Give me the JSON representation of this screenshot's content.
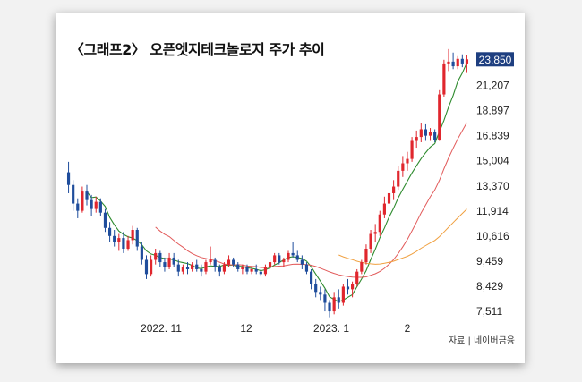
{
  "chart_data": {
    "type": "candlestick",
    "title": "〈그래프2〉 오픈엣지테크놀로지 주가 추이",
    "source": "자료 | 네이버금융",
    "x_ticks": [
      "2022. 11",
      "12",
      "2023. 1",
      "2"
    ],
    "y_ticks": [
      "23,850",
      "21,207",
      "18,897",
      "16,839",
      "15,004",
      "13,370",
      "11,914",
      "10,616",
      "9,459",
      "8,429",
      "7,511"
    ],
    "highlight_tick": "23,850",
    "ylim": [
      7200,
      25500
    ],
    "log_scale": true,
    "up_color": "#e0262d",
    "down_color": "#1f4d9c",
    "highlight_color": "#1e3f80",
    "series": [
      {
        "values": [
          [
            14200,
            14900,
            12900,
            13400
          ],
          [
            13400,
            13700,
            11900,
            12300
          ],
          [
            12300,
            12600,
            11500,
            11900
          ],
          [
            11900,
            13300,
            11800,
            13000
          ],
          [
            13000,
            13400,
            12200,
            12500
          ],
          [
            12500,
            12800,
            11600,
            12000
          ],
          [
            12000,
            12700,
            11800,
            12400
          ],
          [
            12400,
            12600,
            11600,
            11800
          ],
          [
            11800,
            12000,
            10800,
            11000
          ],
          [
            11000,
            11300,
            10300,
            10600
          ],
          [
            10600,
            10900,
            10100,
            10300
          ],
          [
            10300,
            10700,
            9900,
            10500
          ],
          [
            10500,
            10800,
            9800,
            10000
          ],
          [
            10000,
            10600,
            9900,
            10400
          ],
          [
            10400,
            11100,
            10200,
            10900
          ],
          [
            10900,
            11000,
            9900,
            10100
          ],
          [
            10100,
            10300,
            9300,
            9500
          ],
          [
            9500,
            9700,
            8700,
            8900
          ],
          [
            8900,
            9700,
            8800,
            9500
          ],
          [
            9500,
            10000,
            9300,
            9800
          ],
          [
            9800,
            9900,
            9200,
            9400
          ],
          [
            9400,
            9600,
            9000,
            9200
          ],
          [
            9200,
            9800,
            9100,
            9600
          ],
          [
            9600,
            9800,
            9200,
            9300
          ],
          [
            9300,
            9500,
            8800,
            9000
          ],
          [
            9000,
            9300,
            8900,
            9200
          ],
          [
            9200,
            9400,
            8900,
            9100
          ],
          [
            9100,
            9400,
            9000,
            9300
          ],
          [
            9300,
            9500,
            9000,
            9100
          ],
          [
            9100,
            9300,
            8800,
            9000
          ],
          [
            9000,
            9500,
            8900,
            9400
          ],
          [
            9400,
            10100,
            9300,
            9500
          ],
          [
            9500,
            9600,
            9000,
            9200
          ],
          [
            9200,
            9300,
            8800,
            9000
          ],
          [
            9000,
            9400,
            8900,
            9300
          ],
          [
            9300,
            9700,
            9200,
            9500
          ],
          [
            9500,
            9600,
            9200,
            9300
          ],
          [
            9300,
            9400,
            9000,
            9100
          ],
          [
            9100,
            9300,
            8900,
            9200
          ],
          [
            9200,
            9300,
            8900,
            9000
          ],
          [
            9000,
            9200,
            8900,
            9100
          ],
          [
            9100,
            9300,
            8900,
            9000
          ],
          [
            9000,
            9100,
            8800,
            8900
          ],
          [
            8900,
            9300,
            8800,
            9200
          ],
          [
            9200,
            9500,
            9100,
            9400
          ],
          [
            9400,
            9800,
            9300,
            9700
          ],
          [
            9700,
            9800,
            9300,
            9400
          ],
          [
            9400,
            9600,
            9200,
            9500
          ],
          [
            9500,
            9900,
            9400,
            9800
          ],
          [
            9800,
            10300,
            9600,
            9700
          ],
          [
            9700,
            9900,
            9400,
            9500
          ],
          [
            9500,
            9700,
            9100,
            9300
          ],
          [
            9300,
            9400,
            8900,
            9000
          ],
          [
            9000,
            9100,
            8300,
            8500
          ],
          [
            8500,
            8700,
            8000,
            8200
          ],
          [
            8200,
            8400,
            7900,
            8100
          ],
          [
            8100,
            8300,
            7500,
            7800
          ],
          [
            7800,
            7900,
            7300,
            7500
          ],
          [
            7500,
            8200,
            7400,
            8000
          ],
          [
            8000,
            8300,
            7600,
            7800
          ],
          [
            7800,
            8500,
            7700,
            8400
          ],
          [
            8400,
            8700,
            8100,
            8300
          ],
          [
            8300,
            8600,
            8000,
            8500
          ],
          [
            8500,
            9100,
            8400,
            9000
          ],
          [
            9000,
            9500,
            8900,
            9400
          ],
          [
            9400,
            10200,
            9300,
            10000
          ],
          [
            10000,
            10900,
            9800,
            10700
          ],
          [
            10700,
            11200,
            10300,
            10800
          ],
          [
            10800,
            11900,
            10600,
            11700
          ],
          [
            11700,
            12700,
            11500,
            12300
          ],
          [
            12300,
            13200,
            12000,
            12900
          ],
          [
            12900,
            13700,
            12500,
            13300
          ],
          [
            13300,
            14600,
            13100,
            14300
          ],
          [
            14300,
            15300,
            13900,
            14800
          ],
          [
            14800,
            15600,
            14300,
            15100
          ],
          [
            15100,
            16700,
            14900,
            16400
          ],
          [
            16400,
            17200,
            15900,
            16700
          ],
          [
            16700,
            17800,
            16300,
            17300
          ],
          [
            17300,
            17700,
            16400,
            16800
          ],
          [
            16800,
            17400,
            16400,
            17100
          ],
          [
            17100,
            17300,
            16300,
            16500
          ],
          [
            16500,
            20700,
            16400,
            20300
          ],
          [
            20300,
            23800,
            20100,
            23400
          ],
          [
            23400,
            25000,
            22600,
            23600
          ],
          [
            23600,
            24600,
            22800,
            23100
          ],
          [
            23100,
            24200,
            22800,
            23900
          ],
          [
            23900,
            24400,
            23000,
            23400
          ],
          [
            23400,
            24300,
            22400,
            23850
          ]
        ]
      }
    ],
    "moving_averages": [
      {
        "color": "#2e8b2e",
        "values": [
          null,
          null,
          null,
          null,
          13000,
          12640,
          12680,
          12440,
          12140,
          11540,
          11160,
          10840,
          10680,
          10560,
          10500,
          10380,
          10180,
          9900,
          9760,
          9700,
          9600,
          9560,
          9540,
          9500,
          9420,
          9380,
          9340,
          9260,
          9160,
          9120,
          9200,
          9240,
          9220,
          9220,
          9280,
          9260,
          9280,
          9220,
          9220,
          9160,
          9140,
          9100,
          9040,
          9080,
          9160,
          9280,
          9380,
          9500,
          9600,
          9640,
          9600,
          9560,
          9440,
          9200,
          8900,
          8620,
          8340,
          8020,
          7920,
          7840,
          7900,
          8000,
          8100,
          8400,
          8700,
          9040,
          9520,
          9980,
          10520,
          11000,
          11560,
          12040,
          12620,
          13140,
          13640,
          14160,
          14640,
          15120,
          15540,
          15940,
          16200,
          17120,
          18040,
          19160,
          20200,
          21540,
          22400,
          23470
        ]
      }
    ]
  }
}
